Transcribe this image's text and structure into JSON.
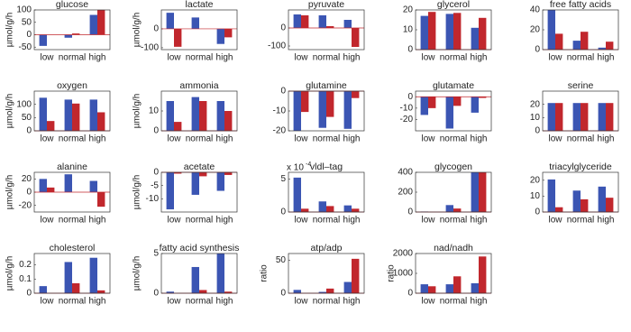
{
  "chart_data": [
    {
      "type": "bar",
      "title": "glucose",
      "y_label": "µmol/g/h",
      "categories": [
        "low",
        "normal",
        "high"
      ],
      "series": [
        {
          "color": "#3b55b3",
          "values": [
            -45,
            -12,
            80
          ]
        },
        {
          "color": "#c1272d",
          "values": [
            0,
            5,
            100
          ]
        }
      ],
      "ylim": [
        -60,
        100
      ],
      "yticks": [
        -50,
        0,
        50,
        100
      ]
    },
    {
      "type": "bar",
      "title": "lactate",
      "y_label": "µmol/g/h",
      "categories": [
        "low",
        "normal",
        "high"
      ],
      "series": [
        {
          "color": "#3b55b3",
          "values": [
            85,
            60,
            -80
          ]
        },
        {
          "color": "#c1272d",
          "values": [
            -95,
            0,
            -45
          ]
        }
      ],
      "ylim": [
        -110,
        100
      ],
      "yticks": [
        -100,
        0
      ]
    },
    {
      "type": "bar",
      "title": "pyruvate",
      "categories": [
        "low",
        "normal",
        "high"
      ],
      "series": [
        {
          "color": "#3b55b3",
          "values": [
            75,
            70,
            45
          ]
        },
        {
          "color": "#c1272d",
          "values": [
            70,
            10,
            -105
          ]
        }
      ],
      "ylim": [
        -120,
        100
      ],
      "yticks": [
        -100,
        0
      ]
    },
    {
      "type": "bar",
      "title": "glycerol",
      "categories": [
        "low",
        "normal",
        "high"
      ],
      "series": [
        {
          "color": "#3b55b3",
          "values": [
            17,
            18,
            11
          ]
        },
        {
          "color": "#c1272d",
          "values": [
            19,
            18.5,
            16
          ]
        }
      ],
      "ylim": [
        0,
        20
      ],
      "yticks": [
        0,
        10,
        20
      ]
    },
    {
      "type": "bar",
      "title": "free fatty acids",
      "categories": [
        "low",
        "normal",
        "high"
      ],
      "series": [
        {
          "color": "#3b55b3",
          "values": [
            40,
            9,
            2
          ]
        },
        {
          "color": "#c1272d",
          "values": [
            16,
            18,
            8
          ]
        }
      ],
      "ylim": [
        0,
        40
      ],
      "yticks": [
        0,
        20,
        40
      ]
    },
    {
      "type": "bar",
      "title": "oxygen",
      "y_label": "µmol/g/h",
      "categories": [
        "low",
        "normal",
        "high"
      ],
      "series": [
        {
          "color": "#3b55b3",
          "values": [
            125,
            118,
            118
          ]
        },
        {
          "color": "#c1272d",
          "values": [
            37,
            103,
            70
          ]
        }
      ],
      "ylim": [
        0,
        150
      ],
      "yticks": [
        0,
        50,
        100
      ]
    },
    {
      "type": "bar",
      "title": "ammonia",
      "y_label": "µmol/g/h",
      "categories": [
        "low",
        "normal",
        "high"
      ],
      "series": [
        {
          "color": "#3b55b3",
          "values": [
            15,
            17,
            15
          ]
        },
        {
          "color": "#c1272d",
          "values": [
            4.5,
            15,
            10
          ]
        }
      ],
      "ylim": [
        0,
        20
      ],
      "yticks": [
        0,
        10
      ]
    },
    {
      "type": "bar",
      "title": "glutamine",
      "categories": [
        "low",
        "normal",
        "high"
      ],
      "series": [
        {
          "color": "#3b55b3",
          "values": [
            -20,
            -18.5,
            -19
          ]
        },
        {
          "color": "#c1272d",
          "values": [
            -10.5,
            -13,
            -3.5
          ]
        }
      ],
      "ylim": [
        -20,
        0
      ],
      "yticks": [
        -20,
        -10,
        0
      ]
    },
    {
      "type": "bar",
      "title": "glutamate",
      "categories": [
        "low",
        "normal",
        "high"
      ],
      "series": [
        {
          "color": "#3b55b3",
          "values": [
            -16,
            -28,
            -14
          ]
        },
        {
          "color": "#c1272d",
          "values": [
            -10,
            -8,
            -1
          ]
        }
      ],
      "ylim": [
        -30,
        5
      ],
      "yticks": [
        -20,
        -10,
        0
      ]
    },
    {
      "type": "bar",
      "title": "serine",
      "categories": [
        "low",
        "normal",
        "high"
      ],
      "series": [
        {
          "color": "#3b55b3",
          "values": [
            21,
            21,
            21
          ]
        },
        {
          "color": "#c1272d",
          "values": [
            21,
            21,
            21
          ]
        }
      ],
      "ylim": [
        0,
        30
      ],
      "yticks": [
        0,
        10,
        20
      ]
    },
    {
      "type": "bar",
      "title": "alanine",
      "y_label": "µmol/g/h",
      "categories": [
        "low",
        "normal",
        "high"
      ],
      "series": [
        {
          "color": "#3b55b3",
          "values": [
            20,
            27,
            17
          ]
        },
        {
          "color": "#c1272d",
          "values": [
            7,
            0,
            -22
          ]
        }
      ],
      "ylim": [
        -30,
        30
      ],
      "yticks": [
        -20,
        0,
        20
      ]
    },
    {
      "type": "bar",
      "title": "acetate",
      "y_label": "µmol/g/h",
      "categories": [
        "low",
        "normal",
        "high"
      ],
      "series": [
        {
          "color": "#3b55b3",
          "values": [
            -14,
            -8.5,
            -7
          ]
        },
        {
          "color": "#c1272d",
          "values": [
            -0.5,
            -1.5,
            -1
          ]
        }
      ],
      "ylim": [
        -15,
        0
      ],
      "yticks": [
        -10,
        -5,
        0
      ]
    },
    {
      "type": "bar",
      "title": "vldl–tag",
      "axis_multiplier": "x 10",
      "axis_exponent": "-4",
      "categories": [
        "low",
        "normal",
        "high"
      ],
      "series": [
        {
          "color": "#3b55b3",
          "values": [
            5.2,
            1.6,
            1
          ]
        },
        {
          "color": "#c1272d",
          "values": [
            0.5,
            0.9,
            0.5
          ]
        }
      ],
      "ylim": [
        0,
        6
      ],
      "yticks": [
        0,
        5
      ]
    },
    {
      "type": "bar",
      "title": "glycogen",
      "categories": [
        "low",
        "normal",
        "high"
      ],
      "series": [
        {
          "color": "#3b55b3",
          "values": [
            5,
            70,
            400
          ]
        },
        {
          "color": "#c1272d",
          "values": [
            0,
            35,
            400
          ]
        }
      ],
      "ylim": [
        0,
        400
      ],
      "yticks": [
        0,
        200,
        400
      ]
    },
    {
      "type": "bar",
      "title": "triacylglyceride",
      "categories": [
        "low",
        "normal",
        "high"
      ],
      "series": [
        {
          "color": "#3b55b3",
          "values": [
            20.5,
            13.5,
            16
          ]
        },
        {
          "color": "#c1272d",
          "values": [
            3,
            8,
            9
          ]
        }
      ],
      "ylim": [
        0,
        25
      ],
      "yticks": [
        0,
        10,
        20
      ]
    },
    {
      "type": "bar",
      "title": "cholesterol",
      "y_label": "µmol/g/h",
      "categories": [
        "low",
        "normal",
        "high"
      ],
      "series": [
        {
          "color": "#3b55b3",
          "values": [
            0.05,
            0.22,
            0.25
          ]
        },
        {
          "color": "#c1272d",
          "values": [
            0,
            0.07,
            0.02
          ]
        }
      ],
      "ylim": [
        0,
        0.28
      ],
      "yticks": [
        0,
        0.1,
        0.2
      ]
    },
    {
      "type": "bar",
      "title": "fatty acid synthesis",
      "y_label": "µmol/g/h",
      "categories": [
        "low",
        "normal",
        "high"
      ],
      "series": [
        {
          "color": "#3b55b3",
          "values": [
            0.2,
            3.3,
            5
          ]
        },
        {
          "color": "#c1272d",
          "values": [
            0,
            0.4,
            0.2
          ]
        }
      ],
      "ylim": [
        0,
        5
      ],
      "yticks": [
        0,
        5
      ]
    },
    {
      "type": "bar",
      "title": "atp/adp",
      "y_label": "ratio",
      "categories": [
        "low",
        "normal",
        "high"
      ],
      "series": [
        {
          "color": "#3b55b3",
          "values": [
            5,
            2,
            17
          ]
        },
        {
          "color": "#c1272d",
          "values": [
            0,
            7,
            52
          ]
        }
      ],
      "ylim": [
        0,
        60
      ],
      "yticks": [
        0,
        50
      ]
    },
    {
      "type": "bar",
      "title": "nad/nadh",
      "y_label": "ratio",
      "categories": [
        "low",
        "normal",
        "high"
      ],
      "series": [
        {
          "color": "#3b55b3",
          "values": [
            450,
            450,
            500
          ]
        },
        {
          "color": "#c1272d",
          "values": [
            350,
            850,
            1850
          ]
        }
      ],
      "ylim": [
        0,
        2000
      ],
      "yticks": [
        0,
        1000,
        2000
      ]
    }
  ]
}
